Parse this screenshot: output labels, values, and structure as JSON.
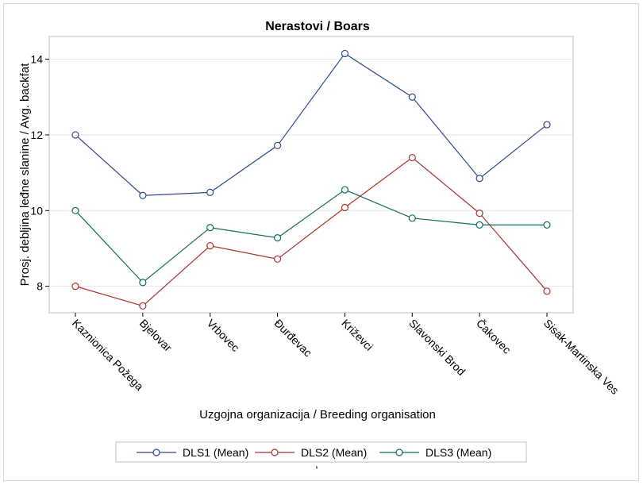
{
  "chart_data": {
    "type": "line",
    "title": "Nerastovi / Boars",
    "xlabel": "Uzgojna organizacija / Breeding organisation",
    "ylabel": "Prosj. debljina leđne slanine / Avg. backfat",
    "categories": [
      "Kaznionica Požega",
      "Bjelovar",
      "Vrbovec",
      "Đurđevac",
      "Križevci",
      "Slavonski Brod",
      "Čakovec",
      "Sisak-Martinska Ves"
    ],
    "ylim": [
      7.3,
      14.6
    ],
    "yticks": [
      8,
      10,
      12,
      14
    ],
    "grid": true,
    "legend_position": "bottom",
    "footnote": "'",
    "series": [
      {
        "name": "DLS1 (Mean)",
        "color": "#2e4a8c",
        "values": [
          12.0,
          10.4,
          10.48,
          11.72,
          14.15,
          13.0,
          10.85,
          12.27
        ]
      },
      {
        "name": "DLS2 (Mean)",
        "color": "#a8322d",
        "values": [
          8.0,
          7.48,
          9.07,
          8.72,
          10.08,
          11.4,
          9.93,
          7.87
        ]
      },
      {
        "name": "DLS3 (Mean)",
        "color": "#116b5a",
        "values": [
          10.0,
          8.1,
          9.55,
          9.28,
          10.55,
          9.8,
          9.62,
          9.62
        ]
      }
    ]
  }
}
